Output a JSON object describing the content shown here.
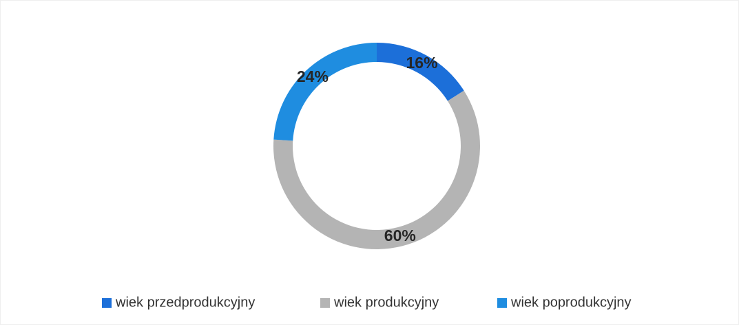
{
  "chart_data": {
    "type": "pie",
    "categories": [
      "wiek przedprodukcyjny",
      "wiek produkcyjny",
      "wiek poprodukcyjny"
    ],
    "values": [
      16,
      60,
      24
    ],
    "value_labels": [
      "16%",
      "60%",
      "24%"
    ],
    "colors": [
      "#1c6fd9",
      "#b4b4b4",
      "#1f8de0"
    ],
    "donut": true,
    "legend": "bottom"
  }
}
